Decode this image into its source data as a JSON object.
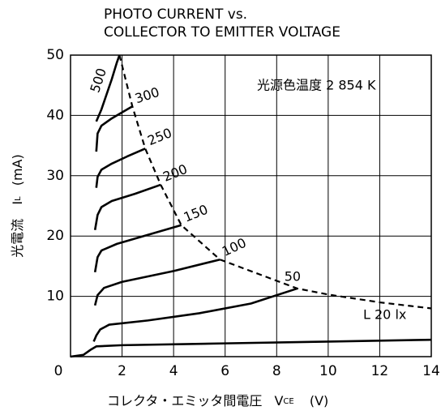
{
  "chart_data": {
    "type": "line",
    "title": [
      "PHOTO CURRENT vs.",
      "COLLECTOR TO EMITTER VOLTAGE"
    ],
    "annotation": "光源色温度 2 854 K",
    "x_label": {
      "main": "コレクタ・エミッタ間電圧",
      "symbol": "V",
      "subscript": "CE",
      "unit": "(V)"
    },
    "y_label": {
      "main": "光電流",
      "symbol": "I",
      "subscript": "L",
      "unit": "(mA)"
    },
    "xlim": [
      0,
      14
    ],
    "ylim": [
      0,
      50
    ],
    "xticks": [
      0,
      2,
      4,
      6,
      8,
      10,
      12,
      14
    ],
    "yticks": [
      10,
      20,
      30,
      40,
      50
    ],
    "grid": true,
    "series": [
      {
        "name": "500",
        "color": "#000",
        "x": [
          1.0,
          1.2,
          1.4,
          1.6,
          1.8,
          1.9
        ],
        "values": [
          39,
          41,
          43.5,
          46,
          48.8,
          50
        ]
      },
      {
        "name": "300",
        "color": "#000",
        "x": [
          1.0,
          1.05,
          1.2,
          1.6,
          2.0,
          2.4
        ],
        "values": [
          34,
          37,
          38.3,
          39.5,
          40.5,
          41.5
        ]
      },
      {
        "name": "250",
        "color": "#000",
        "x": [
          1.0,
          1.05,
          1.2,
          1.6,
          2.2,
          2.9
        ],
        "values": [
          28,
          29.8,
          31,
          32,
          33.2,
          34.5
        ]
      },
      {
        "name": "200",
        "color": "#000",
        "x": [
          0.95,
          1.05,
          1.2,
          1.6,
          2.5,
          3.5
        ],
        "values": [
          21,
          23.5,
          24.8,
          25.8,
          27,
          28.5
        ]
      },
      {
        "name": "150",
        "color": "#000",
        "x": [
          0.95,
          1.05,
          1.2,
          1.8,
          3.0,
          4.3
        ],
        "values": [
          14,
          16.5,
          17.6,
          18.7,
          20.2,
          21.8
        ]
      },
      {
        "name": "100",
        "color": "#000",
        "x": [
          0.95,
          1.05,
          1.3,
          2.0,
          4.0,
          5.8
        ],
        "values": [
          8.5,
          10.2,
          11.4,
          12.4,
          14.2,
          16.1
        ]
      },
      {
        "name": "50",
        "color": "#000",
        "x": [
          0.9,
          1.0,
          1.15,
          1.5,
          3.0,
          5.0,
          7.0,
          8.8
        ],
        "values": [
          2.5,
          3.5,
          4.5,
          5.3,
          6.0,
          7.2,
          8.8,
          11.3
        ]
      },
      {
        "name": "L 20 lx",
        "color": "#000",
        "x": [
          0,
          0.5,
          0.8,
          1.0,
          2.0,
          6.0,
          10.0,
          14.0
        ],
        "values": [
          0,
          0.3,
          1.2,
          1.7,
          1.9,
          2.2,
          2.5,
          2.8
        ]
      },
      {
        "color": "#000",
        "dashed": true,
        "x": [
          1.9,
          2.4,
          2.9,
          3.5,
          4.3,
          5.8,
          8.8,
          10.0,
          12.0,
          14.0
        ],
        "values": [
          50,
          41.5,
          34.5,
          28.5,
          21.8,
          16.1,
          11.3,
          10.3,
          9.0,
          8.0
        ]
      }
    ]
  }
}
